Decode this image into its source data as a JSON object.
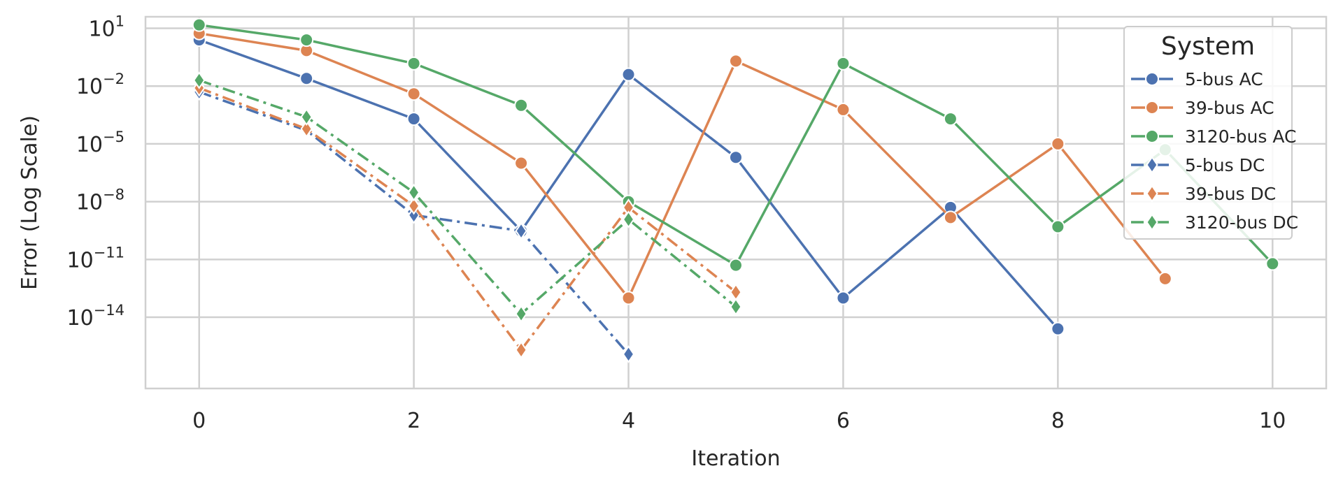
{
  "chart_data": {
    "type": "line",
    "xlabel": "Iteration",
    "ylabel": "Error (Log Scale)",
    "y_scale": "log",
    "xlim": [
      -0.5,
      10.5
    ],
    "ylim_log10": [
      -17.7,
      1.6
    ],
    "x_ticks": [
      "0",
      "2",
      "4",
      "6",
      "8",
      "10"
    ],
    "x_tick_values": [
      0,
      2,
      4,
      6,
      8,
      10
    ],
    "y_tick_values": [
      10.0,
      0.01,
      1e-05,
      1e-08,
      1e-11,
      1e-14
    ],
    "y_tick_labels": [
      {
        "base": "10",
        "exp": "1"
      },
      {
        "base": "10",
        "exp": "−2"
      },
      {
        "base": "10",
        "exp": "−5"
      },
      {
        "base": "10",
        "exp": "−8"
      },
      {
        "base": "10",
        "exp": "−11"
      },
      {
        "base": "10",
        "exp": "−14"
      }
    ],
    "grid": true,
    "legend": {
      "title": "System",
      "placement": "top-right"
    },
    "series": [
      {
        "name": "5-bus AC",
        "color": "#4c72b0",
        "marker": "circle",
        "dash": "solid",
        "x": [
          0,
          1,
          2,
          3,
          4,
          5,
          6,
          7,
          8
        ],
        "y": [
          2.5,
          0.025,
          0.0002,
          3e-10,
          0.04,
          2e-06,
          1e-13,
          5e-09,
          2.5e-15
        ]
      },
      {
        "name": "39-bus AC",
        "color": "#dd8452",
        "marker": "circle",
        "dash": "solid",
        "x": [
          0,
          1,
          2,
          3,
          4,
          5,
          6,
          7,
          8,
          9
        ],
        "y": [
          5.5,
          0.7,
          0.004,
          1e-06,
          1e-13,
          0.2,
          0.0006,
          1.5e-09,
          1e-05,
          1e-12
        ]
      },
      {
        "name": "3120-bus AC",
        "color": "#55a868",
        "marker": "circle",
        "dash": "solid",
        "x": [
          0,
          1,
          2,
          3,
          4,
          5,
          6,
          7,
          8,
          9,
          10
        ],
        "y": [
          15,
          2.5,
          0.15,
          0.001,
          1e-08,
          5e-12,
          0.15,
          0.0002,
          5e-10,
          5e-06,
          6e-12
        ]
      },
      {
        "name": "5-bus DC",
        "color": "#4c72b0",
        "marker": "diamond",
        "dash": "dashdot",
        "x": [
          0,
          1,
          2,
          3,
          4
        ],
        "y": [
          0.005,
          5e-05,
          2e-09,
          3e-10,
          1.2e-16
        ]
      },
      {
        "name": "39-bus DC",
        "color": "#dd8452",
        "marker": "diamond",
        "dash": "dashdot",
        "x": [
          0,
          1,
          2,
          3,
          4,
          5
        ],
        "y": [
          0.008,
          6e-05,
          6e-09,
          2e-16,
          5e-09,
          2e-13
        ]
      },
      {
        "name": "3120-bus DC",
        "color": "#55a868",
        "marker": "diamond",
        "dash": "dashdot",
        "x": [
          0,
          1,
          2,
          3,
          4,
          5
        ],
        "y": [
          0.02,
          0.00025,
          3e-08,
          1.5e-14,
          1.2e-09,
          3.5e-14
        ]
      }
    ]
  }
}
